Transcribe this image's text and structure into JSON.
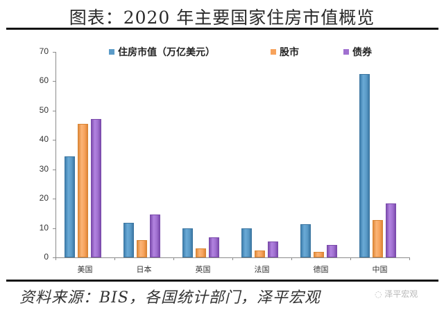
{
  "header": {
    "title": "图表：2020 年主要国家住房市值概览"
  },
  "legend": [
    {
      "label": "住房市值（万亿美元）",
      "color": "#5B9BC8"
    },
    {
      "label": "股市",
      "color": "#F7A35C"
    },
    {
      "label": "债券",
      "color": "#A070D0"
    }
  ],
  "footer": {
    "source": "资料来源：BIS，各国统计部门，泽平宏观",
    "watermark": "泽平宏观"
  },
  "chart_data": {
    "type": "bar",
    "title": "图表：2020 年主要国家住房市值概览",
    "xlabel": "",
    "ylabel": "",
    "ylim": [
      0,
      70
    ],
    "yticks": [
      0,
      10,
      20,
      30,
      40,
      50,
      60,
      70
    ],
    "grid": false,
    "legend_position": "top",
    "categories": [
      "美国",
      "日本",
      "英国",
      "法国",
      "德国",
      "中国"
    ],
    "series": [
      {
        "name": "住房市值（万亿美元）",
        "color": "#5B9BC8",
        "values": [
          34.3,
          11.7,
          9.9,
          9.9,
          11.3,
          62.5
        ]
      },
      {
        "name": "股市",
        "color": "#F7A35C",
        "values": [
          45.5,
          5.9,
          3.1,
          2.4,
          2.0,
          12.7
        ]
      },
      {
        "name": "债券",
        "color": "#A070D0",
        "values": [
          47.1,
          14.5,
          6.9,
          5.4,
          4.2,
          18.5
        ]
      }
    ]
  }
}
